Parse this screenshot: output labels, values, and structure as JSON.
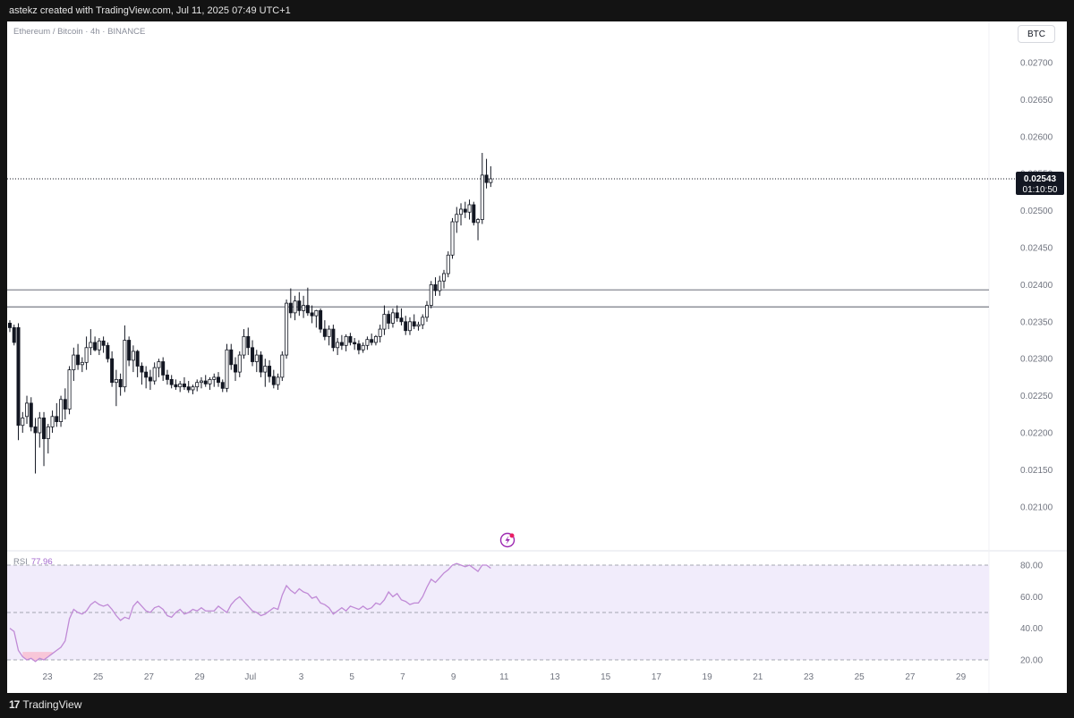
{
  "header": {
    "credit": "astekz created with TradingView.com, Jul 11, 2025 07:49 UTC+1"
  },
  "footer": {
    "brand": "TradingView",
    "logo_icon": "tradingview-logo-icon"
  },
  "colors": {
    "up": "#ffffff",
    "down": "#131722",
    "wick": "#131722",
    "rsi_line": "#c08ad6",
    "rsi_fill": "#f1ecfb",
    "rsi_overbought_fill": "#c9e8cf",
    "level_line": "#787b86",
    "price_line": "#131722",
    "alert_icon": "#9c27b0",
    "alert_dot": "#e91e63"
  },
  "chart_data": [
    {
      "type": "candlestick",
      "title": "Ethereum / Bitcoin · 4h · BINANCE",
      "currency": "BTC",
      "x_ticks": [
        "23",
        "25",
        "27",
        "29",
        "Jul",
        "3",
        "5",
        "7",
        "9",
        "11",
        "13",
        "15",
        "17",
        "19",
        "21",
        "23",
        "25",
        "27",
        "29"
      ],
      "y_ticks": [
        "0.02100",
        "0.02150",
        "0.02200",
        "0.02250",
        "0.02300",
        "0.02350",
        "0.02400",
        "0.02450",
        "0.02500",
        "0.02550",
        "0.02600",
        "0.02650",
        "0.02700"
      ],
      "ylim": [
        0.0206,
        0.0274
      ],
      "last_price": "0.02543",
      "countdown": "01:10:50",
      "horizontal_levels": [
        0.02393,
        0.0237
      ],
      "alert_icon": "lightning-alert-icon",
      "candles": [
        [
          0.02348,
          0.02352,
          0.02336,
          0.02342
        ],
        [
          0.02342,
          0.02346,
          0.02318,
          0.02322
        ],
        [
          0.02342,
          0.02348,
          0.0219,
          0.0221
        ],
        [
          0.0221,
          0.02228,
          0.022,
          0.0222
        ],
        [
          0.02222,
          0.0225,
          0.02212,
          0.0224
        ],
        [
          0.0224,
          0.02248,
          0.02202,
          0.02208
        ],
        [
          0.02208,
          0.0222,
          0.02145,
          0.022
        ],
        [
          0.022,
          0.02228,
          0.0218,
          0.0222
        ],
        [
          0.0222,
          0.02228,
          0.02155,
          0.02192
        ],
        [
          0.02192,
          0.02212,
          0.02172,
          0.02208
        ],
        [
          0.02208,
          0.0223,
          0.022,
          0.02222
        ],
        [
          0.02222,
          0.0224,
          0.02208,
          0.02215
        ],
        [
          0.02215,
          0.0225,
          0.02208,
          0.02245
        ],
        [
          0.02245,
          0.0226,
          0.02218,
          0.02232
        ],
        [
          0.02232,
          0.0229,
          0.02225,
          0.02285
        ],
        [
          0.02285,
          0.02315,
          0.0227,
          0.02305
        ],
        [
          0.02305,
          0.0232,
          0.02285,
          0.02292
        ],
        [
          0.02292,
          0.02302,
          0.02282,
          0.02295
        ],
        [
          0.02295,
          0.0233,
          0.02285,
          0.02315
        ],
        [
          0.02315,
          0.0234,
          0.02305,
          0.02322
        ],
        [
          0.02322,
          0.0233,
          0.0231,
          0.02312
        ],
        [
          0.02312,
          0.02328,
          0.02305,
          0.02324
        ],
        [
          0.02324,
          0.0233,
          0.02308,
          0.02318
        ],
        [
          0.02318,
          0.02322,
          0.02295,
          0.023
        ],
        [
          0.023,
          0.0231,
          0.02262,
          0.02268
        ],
        [
          0.02268,
          0.02285,
          0.02236,
          0.02272
        ],
        [
          0.02272,
          0.0228,
          0.0225,
          0.02262
        ],
        [
          0.02262,
          0.02345,
          0.02255,
          0.02325
        ],
        [
          0.02325,
          0.0233,
          0.0229,
          0.02298
        ],
        [
          0.02298,
          0.02318,
          0.02282,
          0.0231
        ],
        [
          0.0231,
          0.02312,
          0.02275,
          0.0229
        ],
        [
          0.0229,
          0.02295,
          0.02265,
          0.02282
        ],
        [
          0.02282,
          0.0229,
          0.0226,
          0.02275
        ],
        [
          0.02275,
          0.02285,
          0.02258,
          0.0227
        ],
        [
          0.0227,
          0.02295,
          0.02265,
          0.02288
        ],
        [
          0.02288,
          0.023,
          0.02275,
          0.02296
        ],
        [
          0.02296,
          0.02302,
          0.0227,
          0.02278
        ],
        [
          0.02278,
          0.02285,
          0.02265,
          0.02272
        ],
        [
          0.02272,
          0.02278,
          0.0226,
          0.02265
        ],
        [
          0.02265,
          0.02272,
          0.02258,
          0.02262
        ],
        [
          0.02262,
          0.0227,
          0.02255,
          0.02266
        ],
        [
          0.02266,
          0.02275,
          0.02258,
          0.02262
        ],
        [
          0.02262,
          0.0227,
          0.02254,
          0.02258
        ],
        [
          0.02258,
          0.02265,
          0.02252,
          0.02262
        ],
        [
          0.02262,
          0.02272,
          0.02256,
          0.02268
        ],
        [
          0.02268,
          0.02275,
          0.0226,
          0.0227
        ],
        [
          0.0227,
          0.02278,
          0.02262,
          0.02266
        ],
        [
          0.02266,
          0.02275,
          0.02258,
          0.02272
        ],
        [
          0.02272,
          0.0228,
          0.02262,
          0.02275
        ],
        [
          0.02275,
          0.02282,
          0.02262,
          0.02268
        ],
        [
          0.02268,
          0.02272,
          0.02255,
          0.0226
        ],
        [
          0.0226,
          0.0232,
          0.02255,
          0.02312
        ],
        [
          0.02312,
          0.0232,
          0.02285,
          0.02292
        ],
        [
          0.02292,
          0.02302,
          0.0227,
          0.02282
        ],
        [
          0.02282,
          0.0231,
          0.02275,
          0.02305
        ],
        [
          0.02305,
          0.0234,
          0.023,
          0.0233
        ],
        [
          0.0233,
          0.02342,
          0.02305,
          0.02315
        ],
        [
          0.02315,
          0.02325,
          0.0229,
          0.02296
        ],
        [
          0.02296,
          0.02312,
          0.02282,
          0.02305
        ],
        [
          0.02305,
          0.0231,
          0.02275,
          0.02282
        ],
        [
          0.02282,
          0.023,
          0.02262,
          0.0229
        ],
        [
          0.0229,
          0.02298,
          0.02268,
          0.02276
        ],
        [
          0.02276,
          0.02285,
          0.0226,
          0.02265
        ],
        [
          0.02265,
          0.0228,
          0.02258,
          0.02275
        ],
        [
          0.02275,
          0.0231,
          0.0227,
          0.02305
        ],
        [
          0.02305,
          0.0238,
          0.023,
          0.02375
        ],
        [
          0.02375,
          0.02395,
          0.02355,
          0.02362
        ],
        [
          0.02362,
          0.02385,
          0.02352,
          0.02378
        ],
        [
          0.02378,
          0.0239,
          0.02358,
          0.02365
        ],
        [
          0.02365,
          0.02385,
          0.02355,
          0.02372
        ],
        [
          0.02372,
          0.02396,
          0.02358,
          0.02362
        ],
        [
          0.02362,
          0.02372,
          0.02348,
          0.02358
        ],
        [
          0.02358,
          0.02366,
          0.02342,
          0.02365
        ],
        [
          0.02365,
          0.02368,
          0.02335,
          0.0234
        ],
        [
          0.0234,
          0.02352,
          0.02325,
          0.0233
        ],
        [
          0.0233,
          0.02345,
          0.02318,
          0.0234
        ],
        [
          0.0234,
          0.02346,
          0.0231,
          0.02315
        ],
        [
          0.02315,
          0.02328,
          0.02305,
          0.02322
        ],
        [
          0.02322,
          0.02332,
          0.02312,
          0.02318
        ],
        [
          0.02318,
          0.02333,
          0.0231,
          0.0233
        ],
        [
          0.0233,
          0.02335,
          0.02318,
          0.02322
        ],
        [
          0.02322,
          0.02328,
          0.02312,
          0.0232
        ],
        [
          0.0232,
          0.02325,
          0.02306,
          0.02312
        ],
        [
          0.02312,
          0.02322,
          0.02308,
          0.02318
        ],
        [
          0.02318,
          0.0233,
          0.02312,
          0.02326
        ],
        [
          0.02326,
          0.02334,
          0.02318,
          0.02322
        ],
        [
          0.02322,
          0.02332,
          0.02318,
          0.0233
        ],
        [
          0.0233,
          0.02346,
          0.02322,
          0.0234
        ],
        [
          0.0234,
          0.02372,
          0.02332,
          0.0236
        ],
        [
          0.0236,
          0.02365,
          0.0234,
          0.02348
        ],
        [
          0.02348,
          0.02368,
          0.02342,
          0.02362
        ],
        [
          0.02362,
          0.02372,
          0.0235,
          0.02355
        ],
        [
          0.02355,
          0.02368,
          0.02345,
          0.0235
        ],
        [
          0.0235,
          0.02358,
          0.02332,
          0.02338
        ],
        [
          0.02338,
          0.02356,
          0.02332,
          0.0235
        ],
        [
          0.0235,
          0.0236,
          0.0234,
          0.02344
        ],
        [
          0.02344,
          0.0235,
          0.02338,
          0.02346
        ],
        [
          0.02346,
          0.0236,
          0.0234,
          0.02356
        ],
        [
          0.02356,
          0.02378,
          0.0235,
          0.02372
        ],
        [
          0.02372,
          0.02405,
          0.02368,
          0.024
        ],
        [
          0.024,
          0.0241,
          0.02385,
          0.02392
        ],
        [
          0.02392,
          0.02412,
          0.02385,
          0.02405
        ],
        [
          0.02405,
          0.0242,
          0.02395,
          0.02415
        ],
        [
          0.02415,
          0.02445,
          0.0241,
          0.0244
        ],
        [
          0.0244,
          0.0249,
          0.02435,
          0.02485
        ],
        [
          0.02485,
          0.02505,
          0.0247,
          0.02495
        ],
        [
          0.02495,
          0.0251,
          0.0248,
          0.02502
        ],
        [
          0.02502,
          0.02512,
          0.0249,
          0.02498
        ],
        [
          0.02498,
          0.02515,
          0.02488,
          0.02508
        ],
        [
          0.02508,
          0.02512,
          0.0248,
          0.02484
        ],
        [
          0.02484,
          0.0249,
          0.0246,
          0.02488
        ],
        [
          0.02488,
          0.02578,
          0.02482,
          0.02548
        ],
        [
          0.02548,
          0.0257,
          0.0253,
          0.02538
        ],
        [
          0.02538,
          0.0256,
          0.02532,
          0.02543
        ]
      ]
    },
    {
      "type": "line",
      "title": "RSI",
      "current_value": "77.96",
      "y_ticks": [
        "20.00",
        "40.00",
        "60.00",
        "80.00"
      ],
      "ylim": [
        18,
        82
      ],
      "bands": [
        20,
        50,
        80
      ],
      "values": [
        40,
        38,
        26,
        22,
        20,
        21,
        19,
        21,
        20,
        22,
        24,
        26,
        28,
        32,
        46,
        52,
        50,
        49,
        51,
        55,
        57,
        55,
        54,
        55,
        52,
        48,
        45,
        47,
        46,
        54,
        57,
        54,
        51,
        50,
        53,
        54,
        52,
        48,
        47,
        50,
        52,
        49,
        50,
        52,
        51,
        53,
        51,
        51,
        51,
        54,
        52,
        50,
        55,
        58,
        60,
        57,
        54,
        51,
        50,
        48,
        49,
        51,
        53,
        52,
        61,
        67,
        64,
        62,
        65,
        63,
        62,
        59,
        60,
        56,
        55,
        53,
        49,
        51,
        53,
        51,
        54,
        53,
        52,
        54,
        52,
        53,
        56,
        55,
        58,
        63,
        60,
        62,
        58,
        57,
        55,
        56,
        56,
        60,
        66,
        71,
        69,
        72,
        75,
        77,
        80,
        81,
        80,
        79,
        80,
        78,
        76,
        80,
        80,
        78
      ]
    }
  ]
}
